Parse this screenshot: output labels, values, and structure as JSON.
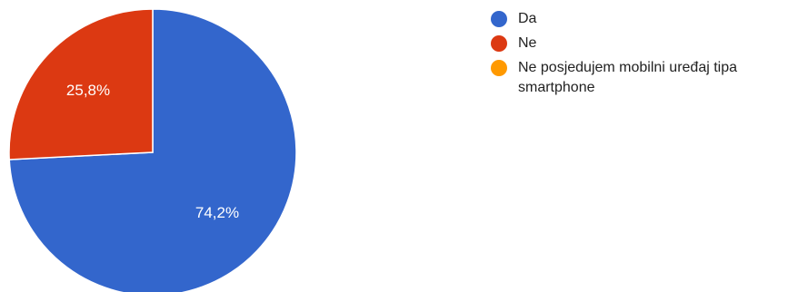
{
  "chart_data": {
    "type": "pie",
    "categories": [
      "Da",
      "Ne",
      "Ne posjedujem mobilni uređaj tipa smartphone"
    ],
    "values": [
      74.2,
      25.8,
      0
    ],
    "value_labels": [
      "74,2%",
      "25,8%",
      ""
    ],
    "colors": [
      "#3366cc",
      "#dc3912",
      "#ff9900"
    ],
    "start_angle_deg": 0,
    "direction": "clockwise",
    "legend_position": "right-top"
  }
}
